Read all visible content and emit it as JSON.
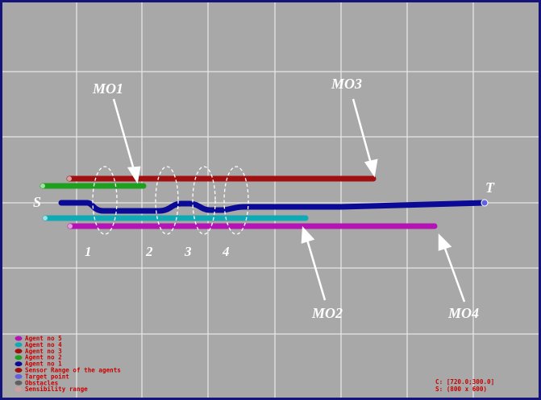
{
  "colors": {
    "background": "#a8a8a8",
    "grid": "#e6e6e6",
    "border": "#14147a",
    "agent1": "#0a0a96",
    "agent2": "#1ea01e",
    "agent3": "#a01010",
    "agent4": "#10aab4",
    "agent5": "#b414b4",
    "legend_text": "#c80000"
  },
  "annotations": {
    "start": "S",
    "target": "T",
    "mo1": "MO1",
    "mo2": "MO2",
    "mo3": "MO3",
    "mo4": "MO4",
    "zones": [
      "1",
      "2",
      "3",
      "4"
    ]
  },
  "legend": [
    {
      "label": "Agent no 5",
      "color": "#b414b4"
    },
    {
      "label": "Agent no 4",
      "color": "#10aab4"
    },
    {
      "label": "Agent no 3",
      "color": "#a01010"
    },
    {
      "label": "Agent no 2",
      "color": "#1ea01e"
    },
    {
      "label": "Agent no 1",
      "color": "#0a0a96"
    },
    {
      "label": "Sensor Range of the agents",
      "color": "#a01010"
    },
    {
      "label": "Target point",
      "color": "#6060e0"
    },
    {
      "label": "Obstacles",
      "color": "#606060"
    },
    {
      "label": "Sensibility range",
      "color": "#d0a0a0"
    }
  ],
  "status": {
    "cursor": "C: [720.0;300.0]",
    "size": "S: (800 x 600)"
  }
}
